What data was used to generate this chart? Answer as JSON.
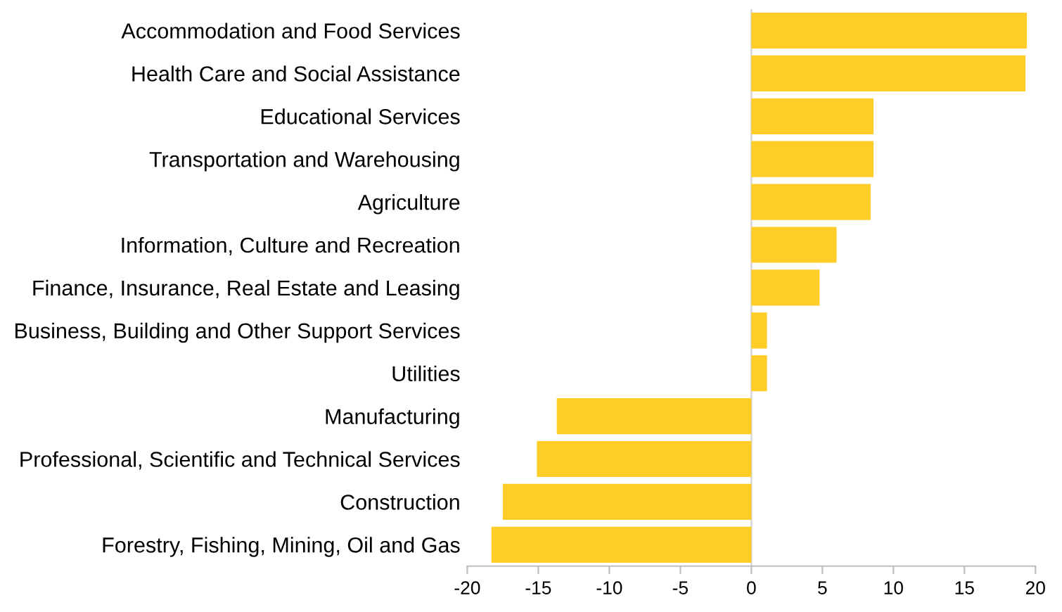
{
  "chart_data": {
    "type": "bar",
    "orientation": "horizontal",
    "categories": [
      "Accommodation and Food Services",
      "Health Care and Social Assistance",
      "Educational Services",
      "Transportation and Warehousing",
      "Agriculture",
      "Information, Culture and Recreation",
      "Finance, Insurance, Real Estate and Leasing",
      "Business, Building and Other Support Services",
      "Utilities",
      "Manufacturing",
      "Professional, Scientific and Technical Services",
      "Construction",
      "Forestry, Fishing, Mining, Oil and Gas"
    ],
    "values": [
      19.4,
      19.3,
      8.6,
      8.6,
      8.4,
      6.0,
      4.8,
      1.1,
      1.1,
      -13.7,
      -15.1,
      -17.5,
      -18.3
    ],
    "color": "#ffcd28",
    "xlim": [
      -20,
      20
    ],
    "xticks": [
      -20,
      -15,
      -10,
      -5,
      0,
      5,
      10,
      15,
      20
    ],
    "ref_lines": [
      {
        "axis": "x",
        "value": 0,
        "color": "#d9d9d9"
      }
    ],
    "legend": false
  }
}
